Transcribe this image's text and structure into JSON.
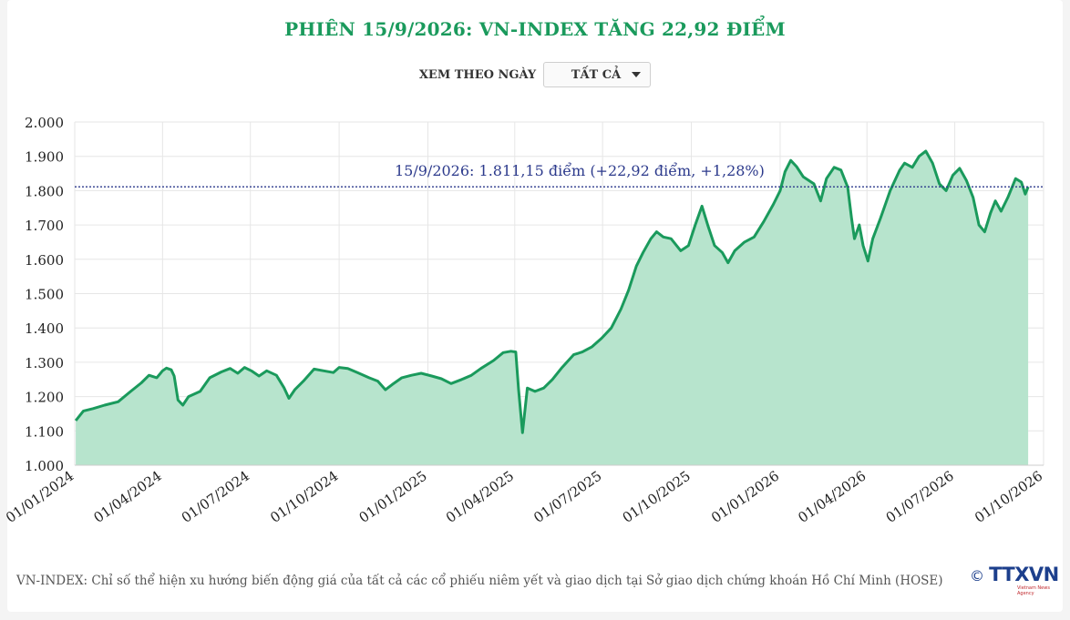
{
  "header": {
    "title": "PHIÊN 15/9/2026: VN-INDEX TĂNG 22,92 ĐIỂM"
  },
  "filter": {
    "label": "XEM THEO NGÀY",
    "selected": "TẤT CẢ"
  },
  "footer": {
    "note": "VN-INDEX: Chỉ số thể hiện xu hướng biến động giá của tất cả các cổ phiếu niêm yết và giao dịch tại Sở giao dịch chứng khoán Hồ Chí Minh (HOSE)",
    "logo_text": "TTXVN",
    "logo_symbol": "©",
    "logo_sub": "Vietnam News Agency"
  },
  "colors": {
    "title": "#1a9a5c",
    "line": "#1a9a5c",
    "area": "#b7e4cd",
    "reference_line": "#2c3a8c",
    "annotation": "#2c3a8c"
  },
  "chart_data": {
    "type": "area",
    "ylim": [
      1000,
      2000
    ],
    "yticks": [
      1000,
      1100,
      1200,
      1300,
      1400,
      1500,
      1600,
      1700,
      1800,
      1900,
      2000
    ],
    "ytick_labels": [
      "1.000",
      "1.100",
      "1.200",
      "1.300",
      "1.400",
      "1.500",
      "1.600",
      "1.700",
      "1.800",
      "1.900",
      "2.000"
    ],
    "xlim": [
      "2024-01-01",
      "2026-10-01"
    ],
    "xticks": [
      "2024-01-01",
      "2024-04-01",
      "2024-07-01",
      "2024-10-01",
      "2025-01-01",
      "2025-04-01",
      "2025-07-01",
      "2025-10-01",
      "2026-01-01",
      "2026-04-01",
      "2026-07-01",
      "2026-10-01"
    ],
    "xtick_labels": [
      "01/01/2024",
      "01/04/2024",
      "01/07/2024",
      "01/10/2024",
      "01/01/2025",
      "01/04/2025",
      "01/07/2025",
      "01/10/2025",
      "01/01/2026",
      "01/04/2026",
      "01/07/2026",
      "01/10/2026"
    ],
    "grid": true,
    "reference": {
      "value": 1811.15,
      "label": "15/9/2026: 1.811,15 điểm (+22,92 điểm, +1,28%)"
    },
    "series": [
      {
        "points": [
          [
            "2024-01-02",
            1130
          ],
          [
            "2024-01-10",
            1158
          ],
          [
            "2024-01-20",
            1165
          ],
          [
            "2024-02-01",
            1175
          ],
          [
            "2024-02-15",
            1185
          ],
          [
            "2024-02-28",
            1215
          ],
          [
            "2024-03-10",
            1240
          ],
          [
            "2024-03-18",
            1262
          ],
          [
            "2024-03-26",
            1255
          ],
          [
            "2024-04-01",
            1275
          ],
          [
            "2024-04-05",
            1283
          ],
          [
            "2024-04-10",
            1278
          ],
          [
            "2024-04-13",
            1260
          ],
          [
            "2024-04-17",
            1190
          ],
          [
            "2024-04-22",
            1175
          ],
          [
            "2024-04-28",
            1200
          ],
          [
            "2024-05-10",
            1215
          ],
          [
            "2024-05-20",
            1255
          ],
          [
            "2024-06-01",
            1272
          ],
          [
            "2024-06-10",
            1282
          ],
          [
            "2024-06-18",
            1268
          ],
          [
            "2024-06-25",
            1285
          ],
          [
            "2024-07-02",
            1275
          ],
          [
            "2024-07-10",
            1260
          ],
          [
            "2024-07-18",
            1275
          ],
          [
            "2024-07-28",
            1262
          ],
          [
            "2024-08-05",
            1225
          ],
          [
            "2024-08-10",
            1195
          ],
          [
            "2024-08-16",
            1220
          ],
          [
            "2024-08-25",
            1245
          ],
          [
            "2024-09-05",
            1280
          ],
          [
            "2024-09-15",
            1275
          ],
          [
            "2024-09-25",
            1270
          ],
          [
            "2024-10-01",
            1285
          ],
          [
            "2024-10-10",
            1282
          ],
          [
            "2024-10-20",
            1270
          ],
          [
            "2024-11-01",
            1255
          ],
          [
            "2024-11-10",
            1245
          ],
          [
            "2024-11-18",
            1220
          ],
          [
            "2024-11-25",
            1235
          ],
          [
            "2024-12-05",
            1255
          ],
          [
            "2024-12-15",
            1262
          ],
          [
            "2024-12-25",
            1268
          ],
          [
            "2025-01-05",
            1260
          ],
          [
            "2025-01-15",
            1252
          ],
          [
            "2025-01-25",
            1238
          ],
          [
            "2025-02-05",
            1250
          ],
          [
            "2025-02-15",
            1262
          ],
          [
            "2025-02-25",
            1282
          ],
          [
            "2025-03-10",
            1305
          ],
          [
            "2025-03-20",
            1328
          ],
          [
            "2025-03-28",
            1332
          ],
          [
            "2025-04-02",
            1330
          ],
          [
            "2025-04-05",
            1220
          ],
          [
            "2025-04-09",
            1095
          ],
          [
            "2025-04-14",
            1225
          ],
          [
            "2025-04-22",
            1215
          ],
          [
            "2025-05-01",
            1225
          ],
          [
            "2025-05-10",
            1250
          ],
          [
            "2025-05-20",
            1285
          ],
          [
            "2025-06-01",
            1322
          ],
          [
            "2025-06-10",
            1330
          ],
          [
            "2025-06-20",
            1345
          ],
          [
            "2025-06-30",
            1370
          ],
          [
            "2025-07-10",
            1400
          ],
          [
            "2025-07-20",
            1455
          ],
          [
            "2025-07-28",
            1510
          ],
          [
            "2025-08-05",
            1580
          ],
          [
            "2025-08-12",
            1620
          ],
          [
            "2025-08-20",
            1660
          ],
          [
            "2025-08-26",
            1680
          ],
          [
            "2025-09-02",
            1665
          ],
          [
            "2025-09-10",
            1660
          ],
          [
            "2025-09-20",
            1625
          ],
          [
            "2025-09-28",
            1640
          ],
          [
            "2025-10-05",
            1700
          ],
          [
            "2025-10-12",
            1755
          ],
          [
            "2025-10-18",
            1700
          ],
          [
            "2025-10-25",
            1640
          ],
          [
            "2025-11-02",
            1620
          ],
          [
            "2025-11-08",
            1590
          ],
          [
            "2025-11-15",
            1625
          ],
          [
            "2025-11-25",
            1650
          ],
          [
            "2025-12-05",
            1665
          ],
          [
            "2025-12-15",
            1710
          ],
          [
            "2025-12-25",
            1760
          ],
          [
            "2026-01-01",
            1800
          ],
          [
            "2026-01-06",
            1855
          ],
          [
            "2026-01-12",
            1888
          ],
          [
            "2026-01-18",
            1870
          ],
          [
            "2026-01-25",
            1840
          ],
          [
            "2026-02-05",
            1820
          ],
          [
            "2026-02-12",
            1770
          ],
          [
            "2026-02-18",
            1835
          ],
          [
            "2026-02-26",
            1868
          ],
          [
            "2026-03-05",
            1860
          ],
          [
            "2026-03-12",
            1810
          ],
          [
            "2026-03-16",
            1720
          ],
          [
            "2026-03-19",
            1660
          ],
          [
            "2026-03-24",
            1700
          ],
          [
            "2026-03-28",
            1640
          ],
          [
            "2026-04-02",
            1595
          ],
          [
            "2026-04-07",
            1660
          ],
          [
            "2026-04-15",
            1720
          ],
          [
            "2026-04-25",
            1800
          ],
          [
            "2026-05-05",
            1860
          ],
          [
            "2026-05-10",
            1880
          ],
          [
            "2026-05-18",
            1868
          ],
          [
            "2026-05-25",
            1900
          ],
          [
            "2026-06-01",
            1915
          ],
          [
            "2026-06-08",
            1880
          ],
          [
            "2026-06-15",
            1820
          ],
          [
            "2026-06-22",
            1800
          ],
          [
            "2026-06-29",
            1845
          ],
          [
            "2026-07-06",
            1865
          ],
          [
            "2026-07-13",
            1830
          ],
          [
            "2026-07-20",
            1780
          ],
          [
            "2026-07-26",
            1700
          ],
          [
            "2026-08-01",
            1680
          ],
          [
            "2026-08-07",
            1735
          ],
          [
            "2026-08-12",
            1770
          ],
          [
            "2026-08-18",
            1740
          ],
          [
            "2026-08-25",
            1780
          ],
          [
            "2026-09-02",
            1835
          ],
          [
            "2026-09-08",
            1825
          ],
          [
            "2026-09-12",
            1790
          ],
          [
            "2026-09-15",
            1811.15
          ]
        ]
      }
    ]
  }
}
